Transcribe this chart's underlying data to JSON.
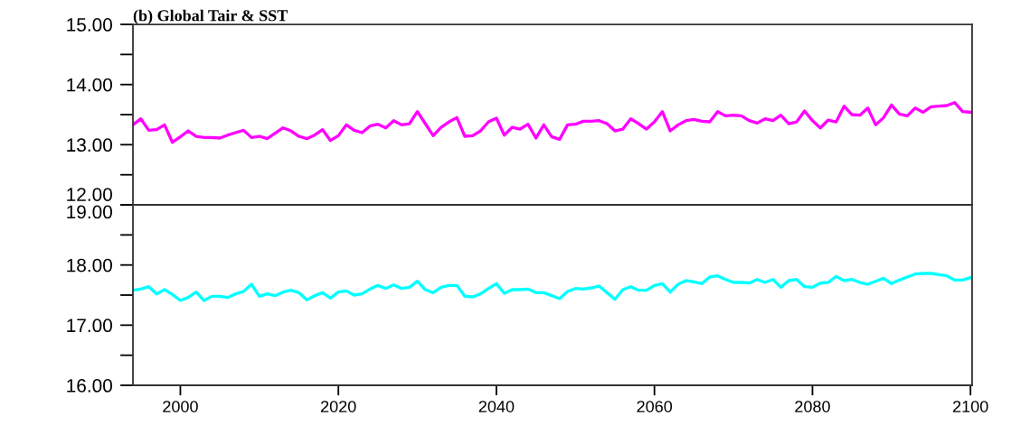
{
  "chart_data": [
    {
      "type": "line",
      "title": "(b) Global Tair & SST",
      "tick_labels": "y",
      "grid": false,
      "xlim": [
        1994,
        2100.2
      ],
      "ylim": [
        12,
        15
      ],
      "yticks": [
        {
          "value": 12,
          "label": "12.00"
        },
        {
          "value": 12.5,
          "label": null
        },
        {
          "value": 13,
          "label": "13.00"
        },
        {
          "value": 13.5,
          "label": null
        },
        {
          "value": 14,
          "label": "14.00"
        },
        {
          "value": 14.5,
          "label": null
        },
        {
          "value": 15,
          "label": "15.00"
        }
      ],
      "series": [
        {
          "color": "#ff00ff",
          "x": [
            1994,
            1995,
            1996,
            1997,
            1998,
            1999,
            2000,
            2001,
            2002,
            2003,
            2004,
            2005,
            2006,
            2007,
            2008,
            2009,
            2010,
            2011,
            2012,
            2013,
            2014,
            2015,
            2016,
            2017,
            2018,
            2019,
            2020,
            2021,
            2022,
            2023,
            2024,
            2025,
            2026,
            2027,
            2028,
            2029,
            2030,
            2031,
            2032,
            2033,
            2034,
            2035,
            2036,
            2037,
            2038,
            2039,
            2040,
            2041,
            2042,
            2043,
            2044,
            2045,
            2046,
            2047,
            2048,
            2049,
            2050,
            2051,
            2052,
            2053,
            2054,
            2055,
            2056,
            2057,
            2058,
            2059,
            2060,
            2061,
            2062,
            2063,
            2064,
            2065,
            2066,
            2067,
            2068,
            2069,
            2070,
            2071,
            2072,
            2073,
            2074,
            2075,
            2076,
            2077,
            2078,
            2079,
            2080,
            2081,
            2082,
            2083,
            2084,
            2085,
            2086,
            2087,
            2088,
            2089,
            2090,
            2091,
            2092,
            2093,
            2094,
            2095,
            2096,
            2097,
            2098,
            2099,
            2100
          ],
          "values": [
            13.33,
            13.43,
            13.24,
            13.25,
            13.33,
            13.04,
            13.13,
            13.23,
            13.14,
            13.12,
            13.12,
            13.11,
            13.16,
            13.2,
            13.24,
            13.12,
            13.14,
            13.1,
            13.19,
            13.28,
            13.23,
            13.14,
            13.1,
            13.16,
            13.25,
            13.07,
            13.15,
            13.33,
            13.24,
            13.2,
            13.31,
            13.34,
            13.28,
            13.4,
            13.33,
            13.35,
            13.55,
            13.35,
            13.15,
            13.29,
            13.38,
            13.45,
            13.14,
            13.15,
            13.23,
            13.38,
            13.44,
            13.16,
            13.29,
            13.26,
            13.34,
            13.11,
            13.33,
            13.13,
            13.09,
            13.33,
            13.34,
            13.39,
            13.39,
            13.4,
            13.35,
            13.23,
            13.26,
            13.43,
            13.35,
            13.26,
            13.38,
            13.55,
            13.23,
            13.33,
            13.4,
            13.42,
            13.39,
            13.38,
            13.55,
            13.48,
            13.49,
            13.48,
            13.4,
            13.36,
            13.43,
            13.4,
            13.49,
            13.35,
            13.38,
            13.56,
            13.4,
            13.28,
            13.41,
            13.38,
            13.64,
            13.5,
            13.49,
            13.61,
            13.33,
            13.45,
            13.66,
            13.51,
            13.48,
            13.61,
            13.54,
            13.63,
            13.64,
            13.65,
            13.7,
            13.55,
            13.54
          ]
        }
      ]
    },
    {
      "type": "line",
      "grid": false,
      "xlim": [
        1994,
        2100.2
      ],
      "ylim": [
        16,
        19
      ],
      "xticks": [
        2000,
        2020,
        2040,
        2060,
        2080,
        2100
      ],
      "yticks": [
        {
          "value": 16,
          "label": "16.00"
        },
        {
          "value": 16.5,
          "label": null
        },
        {
          "value": 17,
          "label": "17.00"
        },
        {
          "value": 17.5,
          "label": null
        },
        {
          "value": 18,
          "label": "18.00"
        },
        {
          "value": 18.5,
          "label": null
        },
        {
          "value": 19,
          "label": "19.00"
        }
      ],
      "series": [
        {
          "color": "#00ffff",
          "x": [
            1994,
            1995,
            1996,
            1997,
            1998,
            1999,
            2000,
            2001,
            2002,
            2003,
            2004,
            2005,
            2006,
            2007,
            2008,
            2009,
            2010,
            2011,
            2012,
            2013,
            2014,
            2015,
            2016,
            2017,
            2018,
            2019,
            2020,
            2021,
            2022,
            2023,
            2024,
            2025,
            2026,
            2027,
            2028,
            2029,
            2030,
            2031,
            2032,
            2033,
            2034,
            2035,
            2036,
            2037,
            2038,
            2039,
            2040,
            2041,
            2042,
            2043,
            2044,
            2045,
            2046,
            2047,
            2048,
            2049,
            2050,
            2051,
            2052,
            2053,
            2054,
            2055,
            2056,
            2057,
            2058,
            2059,
            2060,
            2061,
            2062,
            2063,
            2064,
            2065,
            2066,
            2067,
            2068,
            2069,
            2070,
            2071,
            2072,
            2073,
            2074,
            2075,
            2076,
            2077,
            2078,
            2079,
            2080,
            2081,
            2082,
            2083,
            2084,
            2085,
            2086,
            2087,
            2088,
            2089,
            2090,
            2091,
            2092,
            2093,
            2094,
            2095,
            2096,
            2097,
            2098,
            2099,
            2100
          ],
          "values": [
            17.58,
            17.6,
            17.64,
            17.52,
            17.59,
            17.51,
            17.41,
            17.46,
            17.55,
            17.41,
            17.48,
            17.48,
            17.46,
            17.52,
            17.56,
            17.68,
            17.48,
            17.52,
            17.49,
            17.55,
            17.58,
            17.54,
            17.42,
            17.49,
            17.54,
            17.45,
            17.55,
            17.57,
            17.5,
            17.52,
            17.6,
            17.66,
            17.61,
            17.67,
            17.61,
            17.63,
            17.73,
            17.59,
            17.54,
            17.63,
            17.66,
            17.66,
            17.48,
            17.47,
            17.52,
            17.61,
            17.69,
            17.53,
            17.59,
            17.59,
            17.6,
            17.54,
            17.54,
            17.49,
            17.44,
            17.56,
            17.61,
            17.6,
            17.62,
            17.65,
            17.54,
            17.43,
            17.59,
            17.64,
            17.58,
            17.58,
            17.66,
            17.69,
            17.55,
            17.68,
            17.74,
            17.72,
            17.69,
            17.8,
            17.82,
            17.76,
            17.71,
            17.71,
            17.7,
            17.76,
            17.71,
            17.76,
            17.63,
            17.74,
            17.76,
            17.64,
            17.63,
            17.7,
            17.71,
            17.81,
            17.74,
            17.76,
            17.71,
            17.68,
            17.73,
            17.78,
            17.69,
            17.75,
            17.8,
            17.85,
            17.86,
            17.86,
            17.84,
            17.82,
            17.75,
            17.75,
            17.79
          ]
        }
      ]
    }
  ]
}
